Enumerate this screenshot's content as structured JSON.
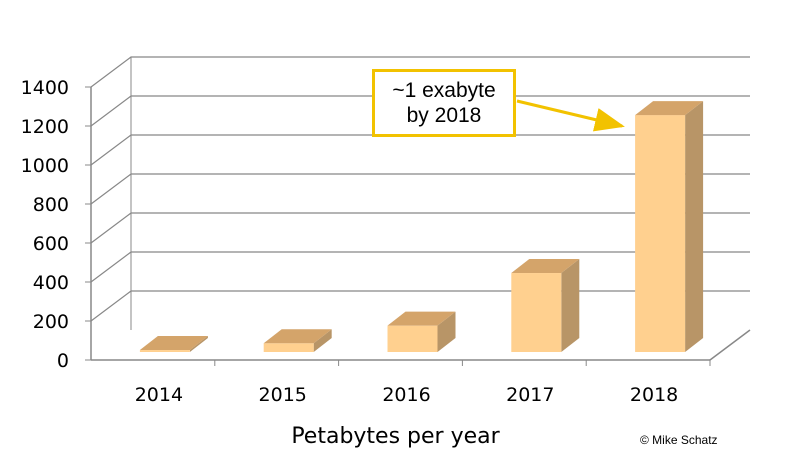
{
  "chart_data": {
    "type": "bar",
    "categories": [
      "2014",
      "2015",
      "2016",
      "2017",
      "2018"
    ],
    "values": [
      10,
      45,
      135,
      405,
      1215
    ],
    "xlabel": "Petabytes per year",
    "ylabel": "",
    "ylim": [
      0,
      1400
    ],
    "yticks": [
      "0",
      "200",
      "400",
      "600",
      "800",
      "1000",
      "1200",
      "1400"
    ],
    "grid": true,
    "style": "3d",
    "annotation": {
      "line1": "~1 exabyte",
      "line2": "by 2018",
      "target": "2018"
    },
    "colors": {
      "bar_front": "#ffd08f",
      "bar_top": "#d4a46a",
      "bar_side": "#b89567",
      "callout_border": "#f2c200",
      "grid": "#888888"
    }
  },
  "credit": "© Mike Schatz"
}
